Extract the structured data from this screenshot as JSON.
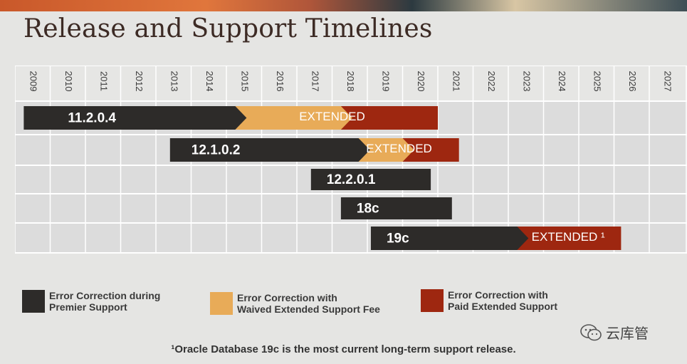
{
  "title": "Release and Support Timelines",
  "colors": {
    "premier": "#2d2b29",
    "waived": "#e8ab58",
    "paid": "#9e2710",
    "grid_line": "#ffffff",
    "row_bg": "#dcdcdc"
  },
  "chart_data": {
    "type": "gantt",
    "years": [
      "2009",
      "2010",
      "2011",
      "2012",
      "2013",
      "2014",
      "2015",
      "2016",
      "2017",
      "2018",
      "2019",
      "2020",
      "2021",
      "2022",
      "2023",
      "2024",
      "2025",
      "2026",
      "2027"
    ],
    "x_range": [
      2009,
      2027
    ],
    "releases": [
      {
        "name": "11.2.0.4",
        "segments": [
          {
            "type": "premier",
            "start": 2009.25,
            "end": 2015.25
          },
          {
            "type": "waived",
            "start": 2015.25,
            "end": 2018.25
          },
          {
            "type": "paid",
            "start": 2018.25,
            "end": 2021.0
          }
        ],
        "extended_label": "EXTENDED"
      },
      {
        "name": "12.1.0.2",
        "segments": [
          {
            "type": "premier",
            "start": 2013.4,
            "end": 2018.75
          },
          {
            "type": "waived",
            "start": 2018.75,
            "end": 2020.0
          },
          {
            "type": "paid",
            "start": 2020.0,
            "end": 2021.6
          }
        ],
        "extended_label": "EXTENDED"
      },
      {
        "name": "12.2.0.1",
        "segments": [
          {
            "type": "premier",
            "start": 2017.4,
            "end": 2020.8
          }
        ]
      },
      {
        "name": "18c",
        "segments": [
          {
            "type": "premier",
            "start": 2018.25,
            "end": 2021.4
          }
        ]
      },
      {
        "name": "19c",
        "segments": [
          {
            "type": "premier",
            "start": 2019.1,
            "end": 2023.25
          },
          {
            "type": "paid",
            "start": 2023.25,
            "end": 2026.2
          }
        ],
        "extended_label": "EXTENDED ¹"
      }
    ]
  },
  "legend": [
    {
      "key": "premier",
      "label": "Error Correction during\nPremier Support"
    },
    {
      "key": "waived",
      "label": "Error Correction with\nWaived Extended Support Fee"
    },
    {
      "key": "paid",
      "label": "Error Correction with\nPaid Extended Support"
    }
  ],
  "footnote": "¹Oracle Database 19c is the most current long-term support release.",
  "watermark": {
    "text": "云库管",
    "icon": "wechat-icon"
  }
}
